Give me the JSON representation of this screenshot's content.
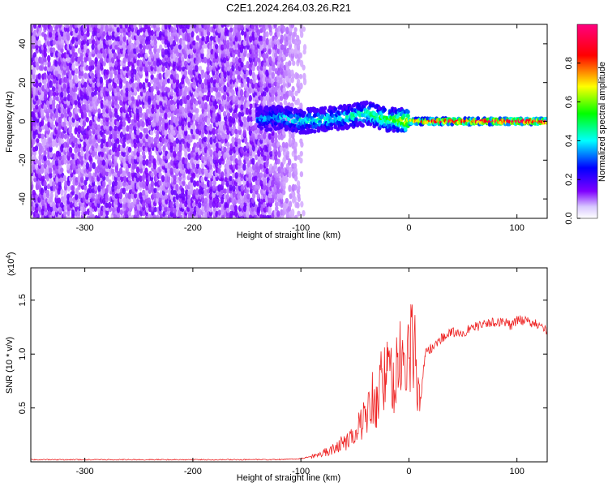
{
  "title": "C2E1.2024.264.03.26.R21",
  "chart_data": [
    {
      "type": "heatmap",
      "xlabel": "Height of straight line (km)",
      "ylabel": "Frequency (Hz)",
      "xlim": [
        -350,
        128
      ],
      "ylim": [
        -50,
        50
      ],
      "x_ticks": [
        -300,
        -200,
        -100,
        0,
        100
      ],
      "y_ticks": [
        -40,
        -20,
        0,
        20,
        40
      ],
      "grid": false,
      "colorbar": {
        "label": "Normalized spectral amplitude",
        "range": [
          0,
          1
        ],
        "ticks": [
          0.0,
          0.2,
          0.4,
          0.6,
          0.8
        ],
        "colormap": [
          "#ffffff",
          "#7f00ff",
          "#0000ff",
          "#00ffff",
          "#00ff00",
          "#ffff00",
          "#ff0000",
          "#ff007f"
        ]
      },
      "noise_region_x": [
        -350,
        -100
      ],
      "signal_band": [
        {
          "x": -140,
          "f": 1,
          "amp": 0.35
        },
        {
          "x": -120,
          "f": 2,
          "amp": 0.4
        },
        {
          "x": -100,
          "f": 0,
          "amp": 0.45
        },
        {
          "x": -80,
          "f": 1,
          "amp": 0.45
        },
        {
          "x": -60,
          "f": 2,
          "amp": 0.45
        },
        {
          "x": -40,
          "f": 4,
          "amp": 0.5
        },
        {
          "x": -20,
          "f": 1,
          "amp": 0.55
        },
        {
          "x": 0,
          "f": 0,
          "amp": 0.75
        },
        {
          "x": 20,
          "f": 0,
          "amp": 0.95
        },
        {
          "x": 60,
          "f": 0,
          "amp": 1.0
        },
        {
          "x": 100,
          "f": 0,
          "amp": 1.0
        },
        {
          "x": 128,
          "f": 0,
          "amp": 1.0
        }
      ]
    },
    {
      "type": "line",
      "xlabel": "Height of straight line (km)",
      "ylabel": "SNR (10 * v/v)",
      "y_multiplier": "(x10",
      "y_multiplier_exp": "4",
      "y_multiplier_close": ")",
      "xlim": [
        -350,
        128
      ],
      "ylim": [
        0,
        1.8
      ],
      "x_ticks": [
        -300,
        -200,
        -100,
        0,
        100
      ],
      "y_ticks": [
        0.5,
        1.0,
        1.5
      ],
      "y_tick_labels": [
        "0.5",
        "1.0",
        "1.5"
      ],
      "grid": false,
      "color": "#ee2222",
      "series": [
        {
          "x": [
            -350,
            -300,
            -250,
            -200,
            -150,
            -120,
            -100,
            -90,
            -80,
            -70,
            -60,
            -50,
            -45,
            -40,
            -35,
            -30,
            -25,
            -20,
            -15,
            -10,
            -5,
            0,
            5,
            10,
            15,
            20,
            25,
            30,
            40,
            50,
            60,
            70,
            80,
            90,
            95,
            100,
            110,
            120,
            128
          ],
          "y": [
            0.02,
            0.02,
            0.02,
            0.02,
            0.02,
            0.02,
            0.03,
            0.05,
            0.08,
            0.12,
            0.18,
            0.25,
            0.35,
            0.45,
            0.6,
            0.55,
            0.75,
            0.85,
            0.7,
            0.9,
            0.95,
            1.0,
            1.05,
            0.5,
            1.0,
            1.05,
            1.1,
            1.15,
            1.2,
            1.2,
            1.25,
            1.27,
            1.3,
            1.3,
            1.25,
            1.32,
            1.3,
            1.28,
            1.2
          ]
        }
      ]
    }
  ]
}
